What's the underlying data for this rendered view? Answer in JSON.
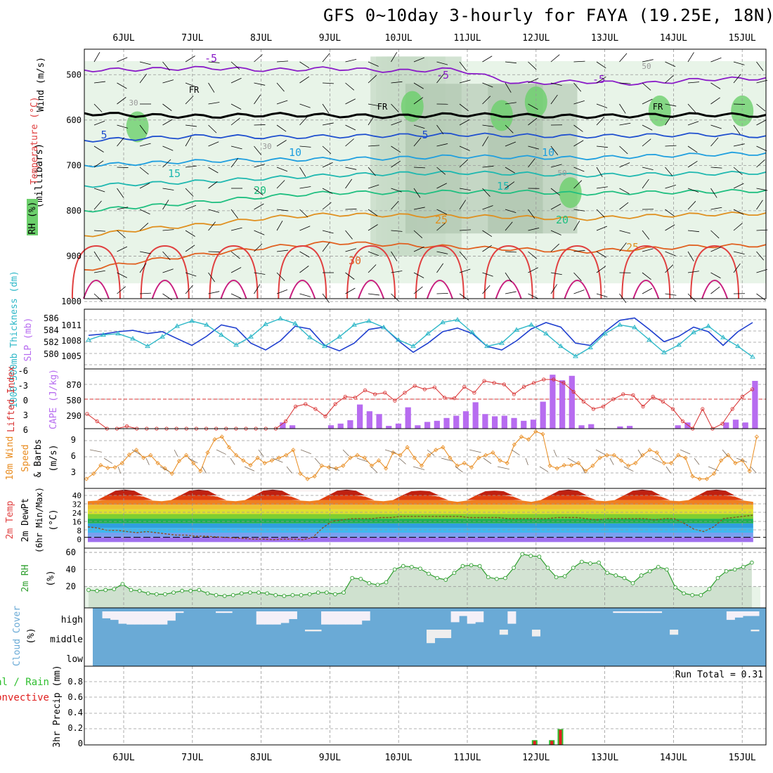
{
  "title": "GFS 0~10day 3-hourly for FAYA (19.25E, 18N)",
  "date_labels": [
    "6JUL",
    "7JUL",
    "8JUL",
    "9JUL",
    "10JUL",
    "11JUL",
    "12JUL",
    "13JUL",
    "14JUL",
    "15JUL"
  ],
  "colors": {
    "axis": "#000000",
    "grid": "#999999",
    "rh_light": "#e8f4e8",
    "rh_mid": "#c8dcc8",
    "rh_dark": "#a8c0a8",
    "rh_green": "#6ccf6c",
    "slp": "#1f3fcf",
    "thickness": "#2fb8c8",
    "lifted_index": "#d83030",
    "cape": "#b76cf0",
    "wind": "#e88a1c",
    "rh2m": "#2f9f2f",
    "cloud": "#6aaad6",
    "cloud_fill": "#f4f0f8",
    "precip_total": "#2fbf2f",
    "precip_conv": "#e02020"
  },
  "chart_data": [
    {
      "type": "heatmap",
      "panel": "upper-air",
      "y_label_parts": [
        "Wind (m/s)",
        "Temperature (°C)",
        "RH (%)",
        "(millibars)"
      ],
      "y_label_wind": "Wind (m/s)",
      "y_label_temp": "Temperature (°C)",
      "y_label_rh": "RH (%)",
      "y_label_mb": "(millibars)",
      "yticks": [
        500,
        600,
        700,
        800,
        900,
        1000
      ],
      "ylim": [
        1000,
        450
      ],
      "isotherm_labels": [
        "-5",
        "5",
        "10",
        "15",
        "20",
        "25",
        "30"
      ],
      "freezing_label": "FR",
      "rh_contour_labels": [
        "30",
        "50"
      ],
      "isotherms": [
        {
          "t": -5,
          "p": [
            490,
            488,
            485,
            490,
            486,
            492,
            488,
            520,
            515,
            520,
            510,
            508
          ]
        },
        {
          "t": 0,
          "p": [
            585,
            590,
            592,
            588,
            590,
            592,
            588,
            590,
            592,
            590,
            588,
            590
          ]
        },
        {
          "t": 5,
          "p": [
            645,
            640,
            635,
            638,
            636,
            634,
            632,
            634,
            636,
            634,
            632,
            636
          ]
        },
        {
          "t": 10,
          "p": [
            700,
            695,
            690,
            688,
            686,
            684,
            680,
            682,
            684,
            680,
            676,
            674
          ]
        },
        {
          "t": 15,
          "p": [
            745,
            740,
            735,
            728,
            722,
            718,
            716,
            718,
            722,
            720,
            718,
            716
          ]
        },
        {
          "t": 20,
          "p": [
            800,
            790,
            780,
            768,
            760,
            760,
            758,
            758,
            762,
            760,
            758,
            756
          ]
        },
        {
          "t": 25,
          "p": [
            855,
            840,
            830,
            815,
            808,
            810,
            812,
            814,
            818,
            812,
            808,
            806
          ]
        },
        {
          "t": 30,
          "p": [
            930,
            910,
            895,
            880,
            870,
            875,
            880,
            885,
            890,
            884,
            878,
            876
          ]
        }
      ]
    },
    {
      "type": "line",
      "panel": "slp-thickness",
      "y_label_thickness": "1000-500mb Thickness (dm)",
      "y_label_slp": "SLP (mb)",
      "yticks_left": [
        "586",
        "584",
        "582",
        "580"
      ],
      "yticks_right": [
        "1011",
        "1008",
        "1005"
      ],
      "series": [
        {
          "name": "SLP (mb)",
          "values": [
            1008.2,
            1008.5,
            1009.0,
            1009.3,
            1008.6,
            1009.0,
            1007.5,
            1006.0,
            1008.0,
            1010.5,
            1009.8,
            1006.5,
            1005.0,
            1007.0,
            1010.2,
            1009.6,
            1006.0,
            1004.8,
            1006.5,
            1009.5,
            1010.0,
            1007.0,
            1004.5,
            1006.5,
            1009.0,
            1009.8,
            1008.6,
            1005.8,
            1005.0,
            1007.0,
            1009.6,
            1011.0,
            1010.0,
            1006.5,
            1006.0,
            1009.0,
            1011.5,
            1012.0,
            1009.5,
            1006.8,
            1008.0,
            1010.0,
            1009.0,
            1006.0,
            1009.0,
            1011.0
          ]
        },
        {
          "name": "Thickness (dm)",
          "values": [
            583.0,
            583.8,
            584.0,
            583.2,
            582.0,
            583.5,
            585.2,
            586.0,
            585.4,
            583.8,
            582.2,
            583.5,
            585.5,
            586.4,
            585.6,
            583.4,
            582.0,
            583.5,
            585.4,
            586.0,
            585.0,
            583.0,
            582.0,
            584.0,
            585.8,
            586.2,
            584.2,
            582.0,
            582.5,
            584.6,
            585.4,
            584.0,
            582.0,
            580.4,
            581.8,
            584.0,
            585.4,
            585.0,
            583.0,
            581.0,
            582.2,
            584.2,
            585.2,
            583.4,
            582.0,
            580.3
          ]
        }
      ]
    },
    {
      "type": "bar",
      "panel": "li-cape",
      "y_label_li": "Lifted Index",
      "y_label_cape": "CAPE (J/kg)",
      "yticks_li": [
        "-6",
        "-3",
        "0",
        "3",
        "6"
      ],
      "yticks_cape": [
        "870",
        "580",
        "290"
      ],
      "series": [
        {
          "name": "CAPE (J/kg)",
          "values": [
            0,
            0,
            0,
            0,
            0,
            0,
            0,
            0,
            0,
            0,
            0,
            0,
            0,
            0,
            0,
            0,
            0,
            0,
            0,
            0,
            110,
            60,
            0,
            0,
            0,
            60,
            90,
            150,
            430,
            310,
            260,
            50,
            90,
            380,
            60,
            120,
            140,
            190,
            230,
            310,
            470,
            260,
            220,
            230,
            190,
            140,
            160,
            480,
            960,
            860,
            940,
            60,
            80,
            0,
            0,
            40,
            50,
            0,
            0,
            0,
            0,
            60,
            110,
            0,
            0,
            0,
            110,
            160,
            110,
            850
          ]
        },
        {
          "name": "Lifted Index",
          "values": [
            3.0,
            4.5,
            6.0,
            7.5,
            5.5,
            8,
            8,
            8,
            8,
            8,
            8,
            8,
            8,
            8,
            8,
            8,
            8,
            8,
            8,
            8,
            4.5,
            1.5,
            1.0,
            2.0,
            3.5,
            1.0,
            -0.5,
            -0.3,
            -1.8,
            -1.0,
            -1.3,
            0.3,
            -1.3,
            -2.7,
            -2.0,
            -2.4,
            -0.3,
            -0.2,
            -2.5,
            -1.3,
            -3.7,
            -3.3,
            -3.0,
            -1.0,
            -2.5,
            -3.3,
            -4.0,
            -4.0,
            -3.3,
            -1.5,
            0.5,
            2.0,
            1.5,
            0,
            -1.0,
            -0.8,
            1.5,
            -0.5,
            0.5,
            2.0,
            4.5,
            8,
            2.0,
            8,
            5.0,
            2.0,
            -0.5,
            -2.0
          ]
        }
      ]
    },
    {
      "type": "line",
      "panel": "wind10m",
      "y_label_title": "10m Wind",
      "y_label_speed": "Speed",
      "y_label_barbs": "& Barbs",
      "y_label_units": "(m/s)",
      "yticks": [
        "9",
        "6",
        "3"
      ],
      "series": [
        {
          "name": "10m Wind Speed (m/s)",
          "values": [
            1.0,
            2.0,
            3.6,
            3.1,
            3.2,
            4.0,
            5.6,
            6.5,
            5.0,
            5.5,
            4.0,
            3.0,
            2.0,
            4.4,
            5.5,
            4.0,
            2.5,
            6.0,
            8.5,
            9.0,
            7.0,
            5.5,
            4.5,
            3.6,
            5.0,
            4.0,
            4.5,
            5.0,
            5.5,
            6.5,
            2.0,
            1.0,
            1.5,
            3.5,
            3.2,
            3.0,
            3.5,
            5.0,
            5.5,
            5.0,
            3.5,
            4.5,
            3.0,
            6.0,
            5.5,
            7.0,
            5.0,
            3.5,
            5.5,
            6.5,
            7.0,
            5.0,
            3.5,
            4.0,
            3.2,
            5.0,
            5.5,
            6.0,
            4.5,
            4.0,
            7.5,
            9.0,
            8.5,
            10.0,
            9.5,
            3.5,
            3.0,
            3.6,
            3.6,
            4.0,
            2.5,
            3.5,
            5.0,
            5.5,
            5.5,
            4.5,
            3.5,
            4.0,
            5.5,
            6.5,
            6.0,
            4.0,
            4.0,
            5.5,
            5.0,
            1.5,
            1.0,
            1.0,
            2.0,
            4.5,
            5.5,
            4.0,
            4.5,
            2.5,
            9.0
          ]
        }
      ]
    },
    {
      "type": "area",
      "panel": "temp2m",
      "y_label_temp": "2m Temp",
      "y_label_dewpt": "2m DewPt",
      "y_label_minmax": "(6hr Min/Max)",
      "y_label_units": "(°C)",
      "yticks": [
        "40",
        "32",
        "24",
        "16",
        "8",
        "0"
      ],
      "series": [
        {
          "name": "2m Temp",
          "values": [
            31,
            31.5,
            36,
            40,
            41,
            40,
            35,
            31.5,
            31,
            32,
            36,
            40,
            41,
            40,
            35,
            31.5,
            31,
            32,
            36,
            40,
            41,
            40,
            35,
            31.5,
            31,
            32,
            36,
            40,
            41,
            40,
            35,
            31.5,
            31,
            32,
            36,
            39.5,
            40,
            39.5,
            35,
            31.5,
            30.5,
            31.5,
            36,
            39.5,
            40,
            39.5,
            35,
            31.5,
            30.5,
            32,
            36,
            40,
            41,
            40,
            35,
            31.5,
            31,
            32,
            36,
            40,
            41,
            40,
            35,
            31.5,
            31,
            32,
            36,
            40,
            41,
            40,
            35,
            31.5,
            30.5
          ]
        },
        {
          "name": "2m DewPt",
          "values": [
            9,
            8,
            6,
            6,
            5,
            4,
            5,
            4,
            3,
            2,
            2,
            1,
            1,
            0.5,
            0,
            -0.5,
            -1,
            -1.5,
            -1.5,
            -2,
            -1.5,
            -1.5,
            -2,
            0,
            8,
            14,
            15,
            16,
            16,
            16,
            17,
            17,
            18,
            18,
            18,
            18,
            18,
            18,
            18,
            17,
            17,
            17,
            17,
            16,
            16,
            16,
            16,
            16,
            17,
            17,
            17,
            16,
            15,
            16,
            16,
            16,
            16,
            16,
            15,
            16,
            16,
            12,
            7,
            5,
            9,
            16,
            17,
            18,
            19
          ]
        }
      ]
    },
    {
      "type": "area",
      "panel": "rh2m",
      "y_label": "2m RH",
      "y_label_units": "(%)",
      "yticks": [
        "60",
        "40",
        "20"
      ],
      "series": [
        {
          "name": "2m RH (%)",
          "values": [
            16,
            15,
            16,
            17,
            23,
            16,
            15,
            12,
            11,
            11,
            13,
            15,
            15,
            16,
            12,
            10,
            9,
            10,
            12,
            13,
            13,
            12,
            10,
            9,
            10,
            10,
            11,
            13,
            13,
            11,
            13,
            30,
            29,
            24,
            22,
            25,
            40,
            44,
            43,
            41,
            35,
            30,
            28,
            36,
            44,
            45,
            44,
            31,
            29,
            30,
            42,
            58,
            56,
            55,
            42,
            31,
            32,
            42,
            49,
            47,
            48,
            36,
            33,
            30,
            24,
            33,
            38,
            43,
            40,
            19,
            12,
            10,
            10,
            17,
            30,
            38,
            40,
            43,
            48
          ]
        }
      ]
    },
    {
      "type": "area",
      "panel": "cloud",
      "y_label": "Cloud Cover",
      "y_label_units": "(%)",
      "yticks": [
        "high",
        "middle",
        "low"
      ],
      "series": [
        {
          "name": "high",
          "values": [
            0,
            45,
            55,
            80,
            85,
            85,
            85,
            85,
            85,
            60,
            10,
            0,
            0,
            0,
            0,
            10,
            10,
            0,
            0,
            0,
            85,
            85,
            85,
            75,
            50,
            0,
            0,
            0,
            85,
            85,
            85,
            85,
            85,
            60,
            0,
            0,
            0,
            0,
            0,
            0,
            0,
            0,
            0,
            0,
            70,
            30,
            80,
            70,
            0,
            0,
            0,
            80,
            0,
            0,
            0,
            0,
            0,
            0,
            0,
            0,
            0,
            0,
            0,
            0,
            10,
            10,
            10,
            10,
            10,
            10,
            0,
            0,
            0,
            0,
            0,
            0,
            0,
            0,
            55,
            40,
            30,
            30
          ]
        },
        {
          "name": "middle",
          "values": [
            0,
            0,
            0,
            0,
            0,
            0,
            0,
            0,
            0,
            0,
            0,
            0,
            0,
            0,
            0,
            0,
            0,
            0,
            0,
            0,
            0,
            0,
            0,
            0,
            0,
            0,
            10,
            10,
            0,
            0,
            0,
            0,
            0,
            0,
            0,
            0,
            0,
            0,
            0,
            0,
            0,
            80,
            50,
            50,
            0,
            0,
            0,
            0,
            0,
            0,
            30,
            0,
            0,
            0,
            40,
            0,
            0,
            0,
            0,
            0,
            0,
            0,
            0,
            0,
            0,
            0,
            0,
            0,
            0,
            0,
            0,
            30,
            0,
            0,
            0,
            0,
            0,
            0,
            0,
            0,
            0,
            10
          ]
        },
        {
          "name": "low",
          "values": [
            0,
            0,
            0,
            0,
            0,
            0,
            0,
            0,
            0,
            0,
            0,
            0,
            0,
            0,
            0,
            0,
            0,
            0,
            0,
            0,
            0,
            0,
            0,
            0,
            0,
            0,
            0,
            0,
            0,
            0,
            0,
            0,
            0,
            0,
            0,
            0,
            0,
            0,
            0,
            0,
            0,
            0,
            0,
            0,
            0,
            0,
            0,
            0,
            0,
            0,
            0,
            0,
            0,
            0,
            0,
            0,
            0,
            0,
            0,
            0,
            0,
            0,
            0,
            0,
            0,
            0,
            0,
            0,
            0,
            0,
            0,
            0,
            0,
            0,
            0,
            0,
            0,
            0,
            0,
            0,
            0,
            0
          ]
        }
      ]
    },
    {
      "type": "bar",
      "panel": "precip",
      "y_label_total": "Total / Rain",
      "y_label_conv": "Convective",
      "y_label_precip": "3hr Precip (mm)",
      "yticks": [
        "0.8",
        "0.6",
        "0.4",
        "0.2",
        "0"
      ],
      "run_total": "Run Total = 0.31",
      "series": [
        {
          "name": "Total / Rain",
          "values": [
            0.06,
            0.06,
            0.2
          ]
        },
        {
          "name": "Convective",
          "values": [
            0.05,
            0.05,
            0.19
          ]
        }
      ],
      "x_days": [
        12.0,
        12.25,
        12.375
      ]
    }
  ]
}
